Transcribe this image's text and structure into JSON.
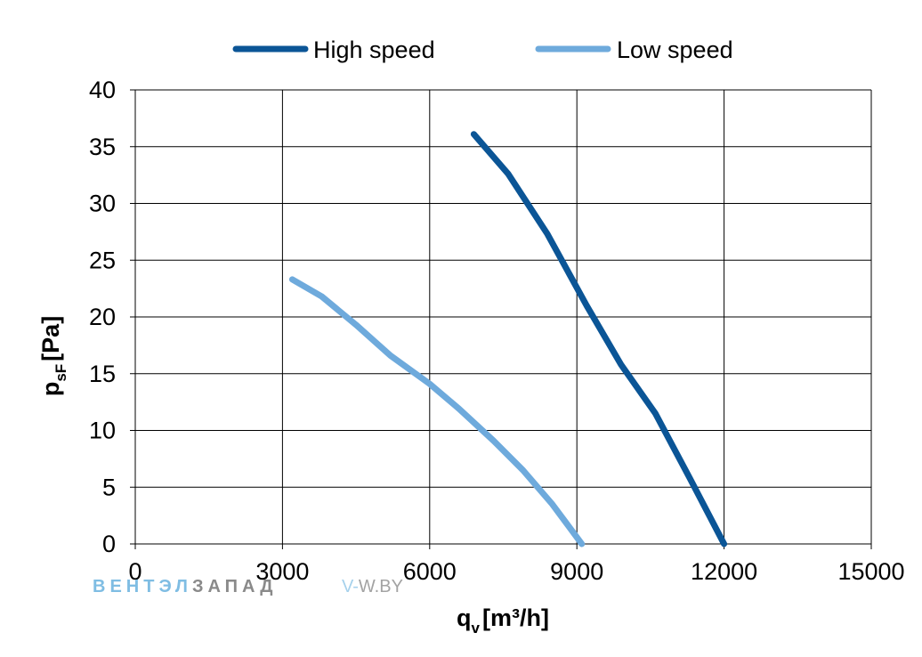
{
  "chart_data": {
    "type": "line",
    "xlabel": {
      "main": "q",
      "sub": "v",
      "unit": "[m³/h]"
    },
    "ylabel": {
      "main": "p",
      "sub": "sF",
      "unit": "[Pa]"
    },
    "xlim": [
      0,
      15000
    ],
    "ylim": [
      0,
      40
    ],
    "xticks": [
      0,
      3000,
      6000,
      9000,
      12000,
      15000
    ],
    "yticks": [
      0,
      5,
      10,
      15,
      20,
      25,
      30,
      35,
      40
    ],
    "grid": true,
    "legend_position": "top",
    "series": [
      {
        "name": "High speed",
        "color": "#0b5596",
        "points": [
          [
            6900,
            36.1
          ],
          [
            7600,
            32.6
          ],
          [
            8400,
            27.3
          ],
          [
            9200,
            21.0
          ],
          [
            9900,
            15.8
          ],
          [
            10600,
            11.5
          ],
          [
            11300,
            5.8
          ],
          [
            12000,
            0
          ]
        ]
      },
      {
        "name": "Low speed",
        "color": "#6eaadc",
        "points": [
          [
            3200,
            23.3
          ],
          [
            3800,
            21.8
          ],
          [
            4500,
            19.3
          ],
          [
            5200,
            16.6
          ],
          [
            6000,
            14.1
          ],
          [
            6600,
            11.9
          ],
          [
            7300,
            9.1
          ],
          [
            7900,
            6.5
          ],
          [
            8500,
            3.5
          ],
          [
            9100,
            0
          ]
        ]
      }
    ]
  },
  "watermark": {
    "left_part1": "ВЕНТЭЛ",
    "left_part2": "ЗАПАД",
    "right_part1": "V-",
    "right_part2": "W.BY"
  }
}
